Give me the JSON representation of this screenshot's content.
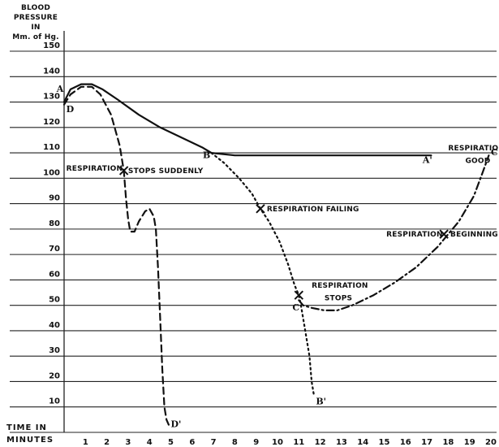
{
  "chart_data": {
    "type": "line",
    "ylabel": [
      "BLOOD PRESSURE",
      "IN",
      "Mm. of Hg."
    ],
    "xlabel": [
      "TIME IN",
      "MINUTES"
    ],
    "xlim": [
      0,
      20
    ],
    "ylim": [
      0,
      150
    ],
    "x_ticks": [
      1,
      2,
      3,
      4,
      5,
      6,
      7,
      8,
      9,
      10,
      11,
      12,
      13,
      14,
      15,
      16,
      17,
      18,
      19,
      20
    ],
    "y_ticks": [
      10,
      20,
      30,
      40,
      50,
      60,
      70,
      80,
      90,
      100,
      110,
      120,
      130,
      140,
      150
    ],
    "grid": "horizontal",
    "series": [
      {
        "style": "solid",
        "points": [
          [
            0,
            130
          ],
          [
            0.3,
            135
          ],
          [
            0.8,
            137
          ],
          [
            1.3,
            137
          ],
          [
            1.8,
            135
          ],
          [
            2.5,
            131
          ],
          [
            3.5,
            125
          ],
          [
            4.5,
            120
          ],
          [
            5.5,
            116
          ],
          [
            6.5,
            112
          ],
          [
            6.9,
            110
          ],
          [
            8,
            109
          ],
          [
            17.2,
            109
          ]
        ]
      },
      {
        "style": "dashed",
        "points": [
          [
            0,
            129
          ],
          [
            0.3,
            133
          ],
          [
            0.8,
            136
          ],
          [
            1.3,
            136
          ],
          [
            1.7,
            133
          ],
          [
            2.2,
            125
          ],
          [
            2.6,
            113
          ],
          [
            2.8,
            103
          ],
          [
            2.9,
            92
          ],
          [
            3.0,
            84
          ],
          [
            3.1,
            79
          ],
          [
            3.3,
            79
          ],
          [
            3.5,
            83
          ],
          [
            3.8,
            87
          ],
          [
            4.0,
            88
          ],
          [
            4.2,
            85
          ],
          [
            4.3,
            80
          ],
          [
            4.4,
            65
          ],
          [
            4.5,
            45
          ],
          [
            4.6,
            25
          ],
          [
            4.7,
            10
          ],
          [
            4.8,
            5
          ],
          [
            4.9,
            3
          ]
        ]
      },
      {
        "style": "dotted",
        "points": [
          [
            6.9,
            110
          ],
          [
            7.5,
            106
          ],
          [
            8.2,
            100
          ],
          [
            8.8,
            94
          ],
          [
            9.2,
            88
          ],
          [
            9.6,
            83
          ],
          [
            10.1,
            75
          ],
          [
            10.5,
            66
          ],
          [
            10.8,
            58
          ],
          [
            11.0,
            54
          ],
          [
            11.1,
            50
          ],
          [
            11.3,
            40
          ],
          [
            11.5,
            30
          ],
          [
            11.6,
            20
          ],
          [
            11.7,
            15
          ]
        ]
      },
      {
        "style": "dash-dot",
        "points": [
          [
            11.0,
            52
          ],
          [
            11.2,
            50
          ],
          [
            11.6,
            49
          ],
          [
            12.2,
            48
          ],
          [
            12.8,
            48
          ],
          [
            13.5,
            50
          ],
          [
            14.5,
            54
          ],
          [
            15.5,
            59
          ],
          [
            16.5,
            65
          ],
          [
            17.5,
            73
          ],
          [
            18.5,
            83
          ],
          [
            19.2,
            93
          ],
          [
            19.6,
            102
          ],
          [
            19.9,
            109
          ]
        ]
      }
    ],
    "annotations": {
      "points": [
        {
          "text": "A",
          "x": -0.35,
          "y": 134
        },
        {
          "text": "D",
          "x": 0.1,
          "y": 126
        },
        {
          "text": "B",
          "x": 6.5,
          "y": 108
        },
        {
          "text": "A'",
          "x": 16.8,
          "y": 106
        },
        {
          "text": "C",
          "x": 10.7,
          "y": 48
        },
        {
          "text": "C",
          "x": 20.0,
          "y": 109
        },
        {
          "text": "B'",
          "x": 11.8,
          "y": 11
        },
        {
          "text": "D'",
          "x": 5.0,
          "y": 2
        }
      ],
      "crosses": [
        [
          2.8,
          103
        ],
        [
          9.2,
          88
        ],
        [
          11.0,
          54
        ],
        [
          17.8,
          78
        ]
      ],
      "labels": [
        {
          "text": "RESPIRATION",
          "x": 0.1,
          "y": 103
        },
        {
          "text": "STOPS SUDDENLY",
          "x": 3.0,
          "y": 102
        },
        {
          "text": "RESPIRATION FAILING",
          "x": 9.5,
          "y": 87
        },
        {
          "text": "RESPIRATION",
          "x": 11.6,
          "y": 57
        },
        {
          "text": "STOPS",
          "x": 12.2,
          "y": 52
        },
        {
          "text": "RESPIRATION",
          "x": 15.1,
          "y": 77
        },
        {
          "text": "BEGINNING",
          "x": 18.1,
          "y": 77
        },
        {
          "text": "RESPIRATION",
          "x": 18.0,
          "y": 111
        },
        {
          "text": "GOOD",
          "x": 18.8,
          "y": 106
        }
      ]
    }
  }
}
